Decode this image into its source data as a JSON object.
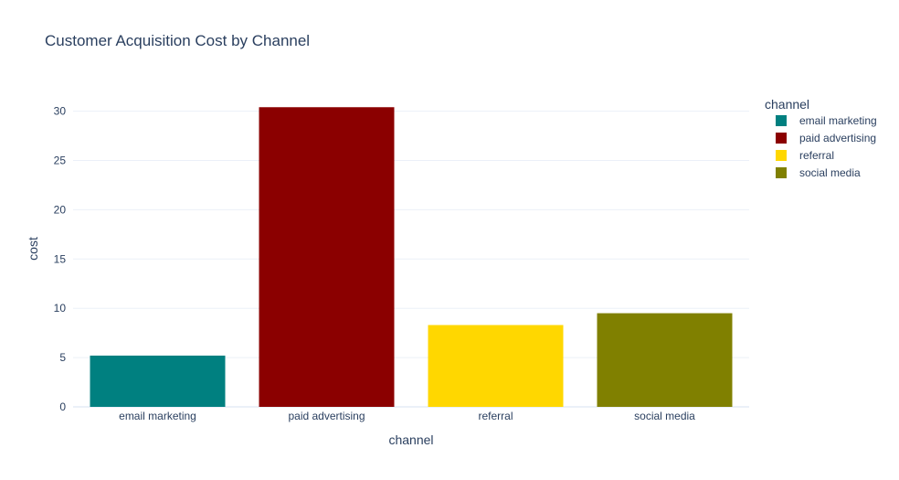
{
  "chart_data": {
    "type": "bar",
    "title": "Customer Acquisition Cost by Channel",
    "xlabel": "channel",
    "ylabel": "cost",
    "categories": [
      "email marketing",
      "paid advertising",
      "referral",
      "social media"
    ],
    "values": [
      5.2,
      30.4,
      8.3,
      9.5
    ],
    "colors": [
      "#008080",
      "#8b0000",
      "#ffd700",
      "#808000"
    ],
    "ylim": [
      0,
      32
    ],
    "yticks": [
      0,
      5,
      10,
      15,
      20,
      25,
      30
    ],
    "grid": true,
    "legend": {
      "title": "channel",
      "placement": "right",
      "items": [
        "email marketing",
        "paid advertising",
        "referral",
        "social media"
      ]
    }
  }
}
